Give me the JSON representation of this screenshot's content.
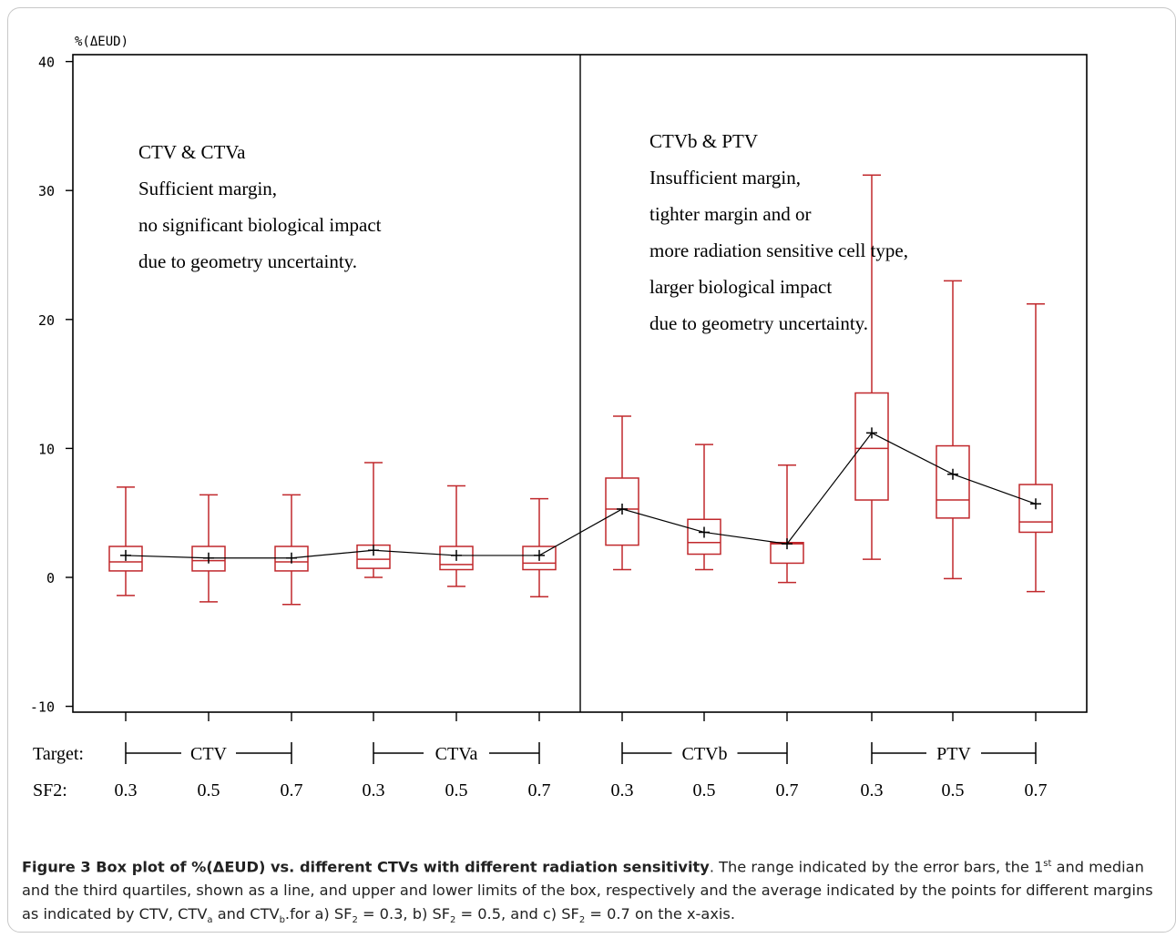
{
  "chart_data": {
    "type": "box",
    "ylabel": "%(ΔEUD)",
    "ylim": [
      -10,
      40
    ],
    "yticks": [
      40,
      30,
      20,
      10,
      0,
      -10
    ],
    "x_row_labels": {
      "target": "Target:",
      "sf2": "SF2:"
    },
    "groups": [
      {
        "name": "CTV",
        "sf2": [
          "0.3",
          "0.5",
          "0.7"
        ]
      },
      {
        "name": "CTVa",
        "sf2": [
          "0.3",
          "0.5",
          "0.7"
        ]
      },
      {
        "name": "CTVb",
        "sf2": [
          "0.3",
          "0.5",
          "0.7"
        ]
      },
      {
        "name": "PTV",
        "sf2": [
          "0.3",
          "0.5",
          "0.7"
        ]
      }
    ],
    "boxes": [
      {
        "group": "CTV",
        "sf2": "0.3",
        "min": -1.4,
        "q1": 0.5,
        "median": 1.2,
        "q3": 2.4,
        "max": 7.0,
        "mean": 1.7
      },
      {
        "group": "CTV",
        "sf2": "0.5",
        "min": -1.9,
        "q1": 0.5,
        "median": 1.3,
        "q3": 2.4,
        "max": 6.4,
        "mean": 1.5
      },
      {
        "group": "CTV",
        "sf2": "0.7",
        "min": -2.1,
        "q1": 0.5,
        "median": 1.2,
        "q3": 2.4,
        "max": 6.4,
        "mean": 1.5
      },
      {
        "group": "CTVa",
        "sf2": "0.3",
        "min": -0.0,
        "q1": 0.7,
        "median": 1.4,
        "q3": 2.5,
        "max": 8.9,
        "mean": 2.1
      },
      {
        "group": "CTVa",
        "sf2": "0.5",
        "min": -0.7,
        "q1": 0.6,
        "median": 1.0,
        "q3": 2.4,
        "max": 7.1,
        "mean": 1.7
      },
      {
        "group": "CTVa",
        "sf2": "0.7",
        "min": -1.5,
        "q1": 0.6,
        "median": 1.1,
        "q3": 2.4,
        "max": 6.1,
        "mean": 1.7
      },
      {
        "group": "CTVb",
        "sf2": "0.3",
        "min": 0.6,
        "q1": 2.5,
        "median": 5.3,
        "q3": 7.7,
        "max": 12.5,
        "mean": 5.3
      },
      {
        "group": "CTVb",
        "sf2": "0.5",
        "min": 0.6,
        "q1": 1.8,
        "median": 2.7,
        "q3": 4.5,
        "max": 10.3,
        "mean": 3.5
      },
      {
        "group": "CTVb",
        "sf2": "0.7",
        "min": -0.4,
        "q1": 1.1,
        "median": 2.6,
        "q3": 2.7,
        "max": 8.7,
        "mean": 2.6
      },
      {
        "group": "PTV",
        "sf2": "0.3",
        "min": 1.4,
        "q1": 6.0,
        "median": 10.0,
        "q3": 14.3,
        "max": 31.2,
        "mean": 11.2
      },
      {
        "group": "PTV",
        "sf2": "0.5",
        "min": -0.1,
        "q1": 4.6,
        "median": 6.0,
        "q3": 10.2,
        "max": 23.0,
        "mean": 8.0
      },
      {
        "group": "PTV",
        "sf2": "0.7",
        "min": -1.1,
        "q1": 3.5,
        "median": 4.3,
        "q3": 7.2,
        "max": 21.2,
        "mean": 5.7
      }
    ],
    "annotations": {
      "left": [
        "CTV & CTVa",
        "Sufficient margin,",
        "no significant biological impact",
        "due to geometry uncertainty."
      ],
      "right": [
        "CTVb & PTV",
        "Insufficient margin,",
        "tighter margin and or",
        "more radiation sensitive cell type,",
        "larger biological impact",
        "due to geometry uncertainty."
      ]
    },
    "colors": {
      "box": "#c0282c",
      "mean_line": "#000000",
      "axis": "#000000"
    },
    "grid": false
  },
  "caption": {
    "bold": "Figure 3 Box plot of %(ΔEUD) vs. different CTVs with different radiation sensitivity",
    "p1": ". The range indicated by the error bars, the 1",
    "sup1": "st",
    "p2": " and median and the third quartiles, shown as a line, and upper and lower limits of the box, respectively and the average indicated by the points for different margins as indicated by CTV, CTV",
    "sub_a": "a",
    "p3": " and CTV",
    "sub_b": "b",
    "p4": ".for a) SF",
    "sub_2a": "2",
    "p5": " = 0.3, b) SF",
    "sub_2b": "2",
    "p6": " = 0.5, and c) SF",
    "sub_2c": "2",
    "p7": " = 0.7 on the x-axis."
  }
}
